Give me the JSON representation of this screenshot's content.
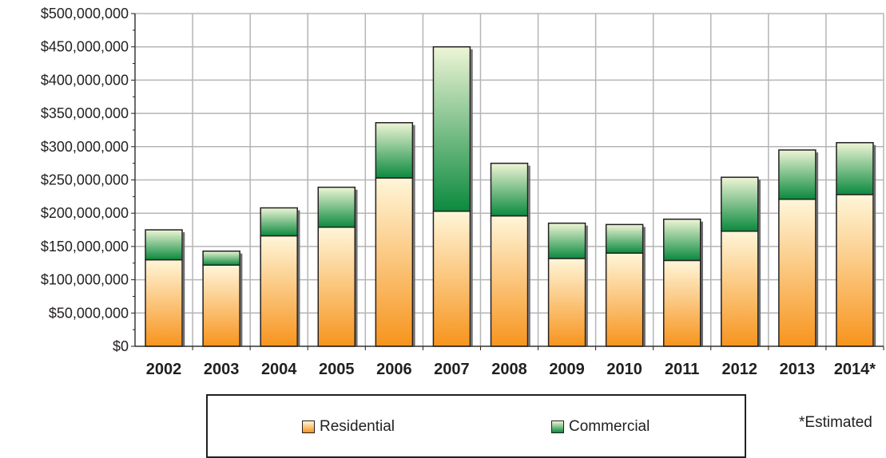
{
  "chart_data": {
    "type": "bar",
    "stacked": true,
    "categories": [
      "2002",
      "2003",
      "2004",
      "2005",
      "2006",
      "2007",
      "2008",
      "2009",
      "2010",
      "2011",
      "2012",
      "2013",
      "2014*"
    ],
    "series": [
      {
        "name": "Residential",
        "values": [
          130000000,
          122000000,
          166000000,
          179000000,
          253000000,
          203000000,
          196000000,
          132000000,
          140000000,
          129000000,
          173000000,
          221000000,
          228000000
        ]
      },
      {
        "name": "Commercial",
        "values": [
          45000000,
          21000000,
          42000000,
          60000000,
          83000000,
          247000000,
          79000000,
          53000000,
          43000000,
          62000000,
          81000000,
          74000000,
          78000000
        ]
      }
    ],
    "ylim": [
      0,
      500000000
    ],
    "yticks": [
      "$0",
      "$50,000,000",
      "$100,000,000",
      "$150,000,000",
      "$200,000,000",
      "$250,000,000",
      "$300,000,000",
      "$350,000,000",
      "$400,000,000",
      "$450,000,000",
      "$500,000,000"
    ],
    "grid": true,
    "legend_position": "bottom",
    "colors": {
      "residential_top": "#fff6d9",
      "residential_bottom": "#f7941d",
      "commercial_top": "#eef5d6",
      "commercial_bottom": "#0b8a3e"
    },
    "footnote": "*Estimated"
  }
}
